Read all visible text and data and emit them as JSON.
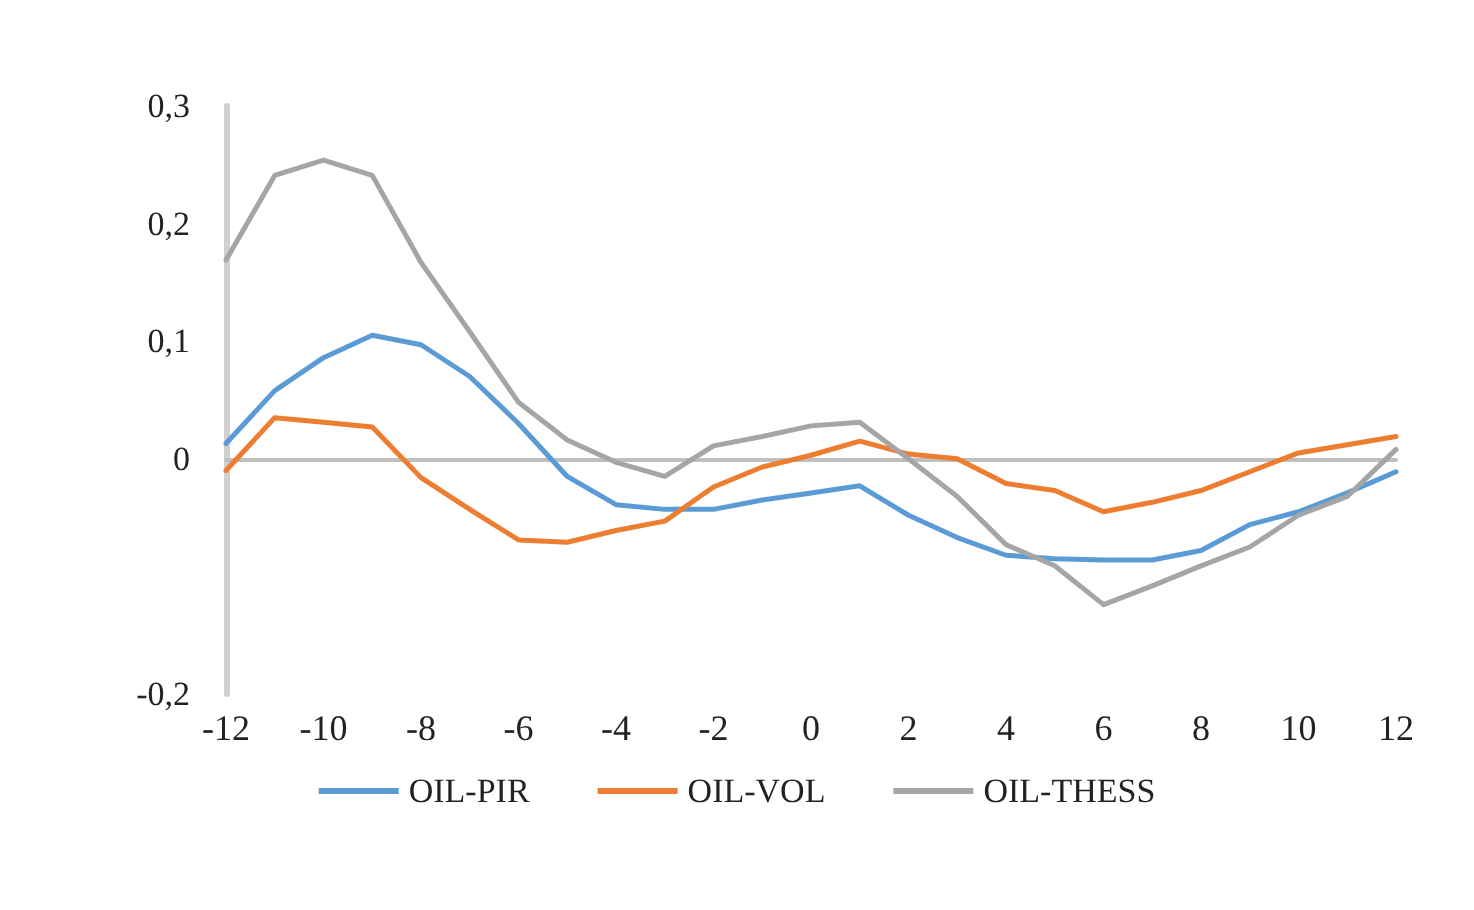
{
  "chart_data": {
    "type": "line",
    "x": [
      -12,
      -11,
      -10,
      -9,
      -8,
      -7,
      -6,
      -5,
      -4,
      -3,
      -2,
      -1,
      0,
      1,
      2,
      3,
      4,
      5,
      6,
      7,
      8,
      9,
      10,
      11,
      12
    ],
    "series": [
      {
        "name": "OIL-PIR",
        "color": "#5b9bd5",
        "values": [
          0.013,
          0.058,
          0.086,
          0.105,
          0.097,
          0.07,
          0.03,
          -0.015,
          -0.039,
          -0.043,
          -0.043,
          -0.035,
          -0.029,
          -0.023,
          -0.048,
          -0.067,
          -0.082,
          -0.085,
          -0.086,
          -0.086,
          -0.078,
          -0.056,
          -0.045,
          -0.029,
          -0.011
        ]
      },
      {
        "name": "OIL-VOL",
        "color": "#ed7d31",
        "values": [
          -0.01,
          0.035,
          0.031,
          0.027,
          -0.016,
          -0.043,
          -0.069,
          -0.071,
          -0.061,
          -0.053,
          -0.024,
          -0.007,
          0.003,
          0.015,
          0.004,
          0,
          -0.021,
          -0.027,
          -0.045,
          -0.037,
          -0.027,
          -0.011,
          0.005,
          0.012,
          0.019
        ]
      },
      {
        "name": "OIL-THESS",
        "color": "#a5a5a5",
        "values": [
          0.169,
          0.241,
          0.254,
          0.241,
          0.167,
          0.108,
          0.048,
          0.016,
          -0.003,
          -0.015,
          0.011,
          0.019,
          0.028,
          0.031,
          0,
          -0.032,
          -0.073,
          -0.091,
          -0.124,
          -0.108,
          -0.091,
          -0.075,
          -0.048,
          -0.032,
          0.008
        ]
      }
    ],
    "xlim": [
      -12,
      12
    ],
    "xticks": [
      -12,
      -10,
      -8,
      -6,
      -4,
      -2,
      0,
      2,
      4,
      6,
      8,
      10,
      12
    ],
    "ylim": [
      -0.2,
      0.3
    ],
    "yticks": [
      {
        "value": -0.2,
        "label": "-0,2"
      },
      0,
      {
        "value": 0.1,
        "label": "0,1"
      },
      {
        "value": 0.2,
        "label": "0,2"
      },
      {
        "value": 0.3,
        "label": "0,3"
      }
    ],
    "legend": "bottom",
    "marker": "none"
  }
}
